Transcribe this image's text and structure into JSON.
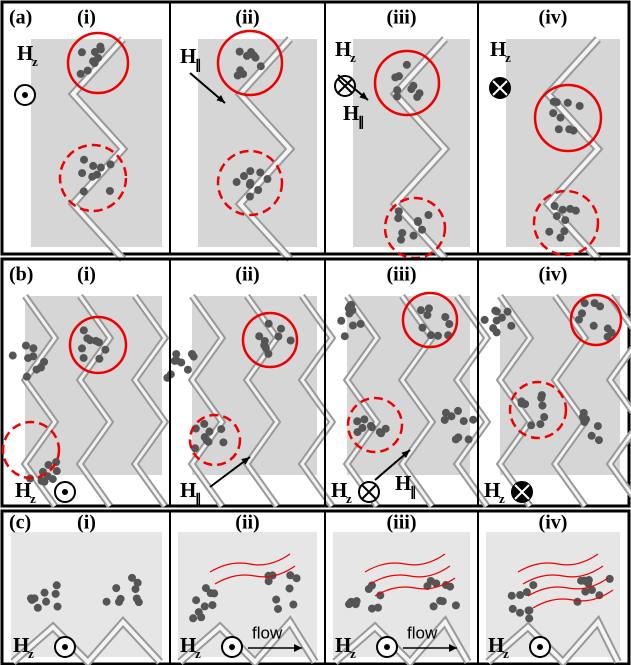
{
  "panels": [
    {
      "label": "(a)",
      "subpanels": [
        {
          "label": "(i)",
          "annotations": [
            {
              "main": "H",
              "sub": "z"
            }
          ]
        },
        {
          "label": "(ii)",
          "annotations": [
            {
              "main": "H",
              "sub": "∥"
            }
          ]
        },
        {
          "label": "(iii)",
          "annotations": [
            {
              "main": "H",
              "sub": "z"
            },
            {
              "main": "H",
              "sub": "∥"
            }
          ]
        },
        {
          "label": "(iv)",
          "annotations": [
            {
              "main": "H",
              "sub": "z"
            }
          ]
        }
      ]
    },
    {
      "label": "(b)",
      "subpanels": [
        {
          "label": "(i)",
          "annotations": [
            {
              "main": "H",
              "sub": "z"
            }
          ]
        },
        {
          "label": "(ii)",
          "annotations": [
            {
              "main": "H",
              "sub": "∥"
            }
          ]
        },
        {
          "label": "(iii)",
          "annotations": [
            {
              "main": "H",
              "sub": "z"
            },
            {
              "main": "H",
              "sub": "∥"
            }
          ]
        },
        {
          "label": "(iv)",
          "annotations": [
            {
              "main": "H",
              "sub": "z"
            }
          ]
        }
      ]
    },
    {
      "label": "(c)",
      "subpanels": [
        {
          "label": "(i)",
          "annotations": [
            {
              "main": "H",
              "sub": "z"
            }
          ]
        },
        {
          "label": "(ii)",
          "annotations": [
            {
              "main": "H",
              "sub": "z"
            },
            {
              "text": "flow"
            }
          ]
        },
        {
          "label": "(iii)",
          "annotations": [
            {
              "main": "H",
              "sub": "z"
            },
            {
              "text": "flow"
            }
          ]
        },
        {
          "label": "(iv)",
          "annotations": [
            {
              "main": "H",
              "sub": "z"
            }
          ]
        }
      ]
    }
  ]
}
